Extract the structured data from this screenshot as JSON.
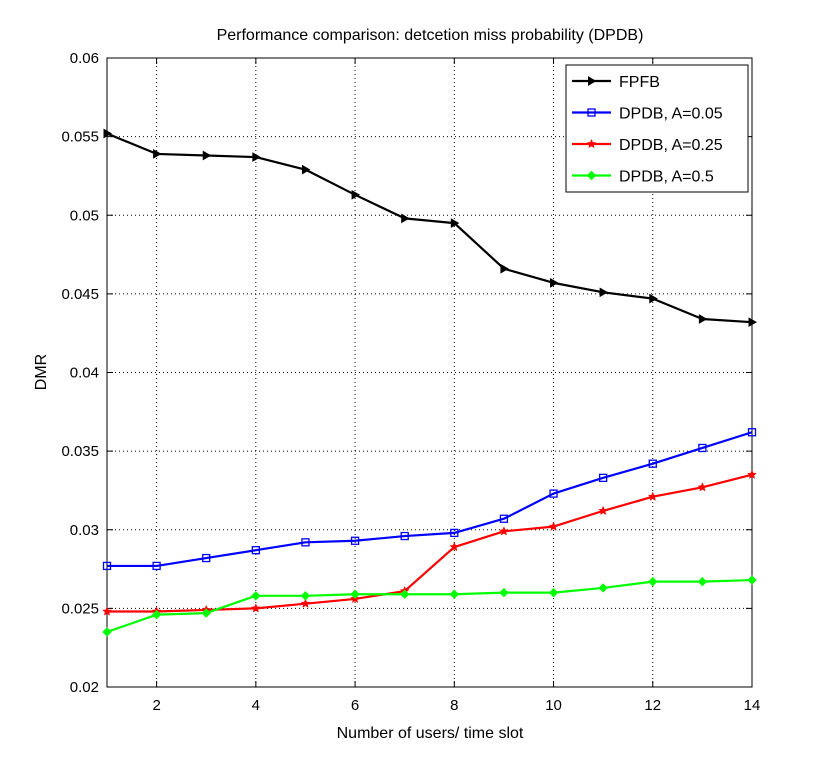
{
  "chart_data": {
    "type": "line",
    "title": "Performance comparison: detcetion miss probability (DPDB)",
    "xlabel": "Number of users/ time slot",
    "ylabel": "DMR",
    "xlim": [
      1,
      14
    ],
    "ylim": [
      0.02,
      0.06
    ],
    "xticks": [
      2,
      4,
      6,
      8,
      10,
      12,
      14
    ],
    "yticks": [
      0.02,
      0.025,
      0.03,
      0.035,
      0.04,
      0.045,
      0.05,
      0.055,
      0.06
    ],
    "ytick_labels": [
      "0.02",
      "0.025",
      "0.03",
      "0.035",
      "0.04",
      "0.045",
      "0.05",
      "0.055",
      "0.06"
    ],
    "grid": true,
    "legend_position": "top-right",
    "x": [
      1,
      2,
      3,
      4,
      5,
      6,
      7,
      8,
      9,
      10,
      11,
      12,
      13,
      14
    ],
    "series": [
      {
        "name": "FPFB",
        "color": "#000000",
        "marker": "triangle-right",
        "values": [
          0.0552,
          0.0539,
          0.0538,
          0.0537,
          0.0529,
          0.0513,
          0.0498,
          0.0495,
          0.0466,
          0.0457,
          0.0451,
          0.0447,
          0.0434,
          0.0432
        ]
      },
      {
        "name": "DPDB, A=0.05",
        "color": "#0000ff",
        "marker": "square",
        "values": [
          0.0277,
          0.0277,
          0.0282,
          0.0287,
          0.0292,
          0.0293,
          0.0296,
          0.0298,
          0.0307,
          0.0323,
          0.0333,
          0.0342,
          0.0352,
          0.0362
        ]
      },
      {
        "name": "DPDB, A=0.25",
        "color": "#ff0000",
        "marker": "star",
        "values": [
          0.0248,
          0.0248,
          0.0249,
          0.025,
          0.0253,
          0.0256,
          0.0261,
          0.0289,
          0.0299,
          0.0302,
          0.0312,
          0.0321,
          0.0327,
          0.0335
        ]
      },
      {
        "name": "DPDB, A=0.5",
        "color": "#00ff00",
        "marker": "diamond",
        "values": [
          0.0235,
          0.0246,
          0.0247,
          0.0258,
          0.0258,
          0.0259,
          0.0259,
          0.0259,
          0.026,
          0.026,
          0.0263,
          0.0267,
          0.0267,
          0.0268
        ]
      }
    ]
  }
}
